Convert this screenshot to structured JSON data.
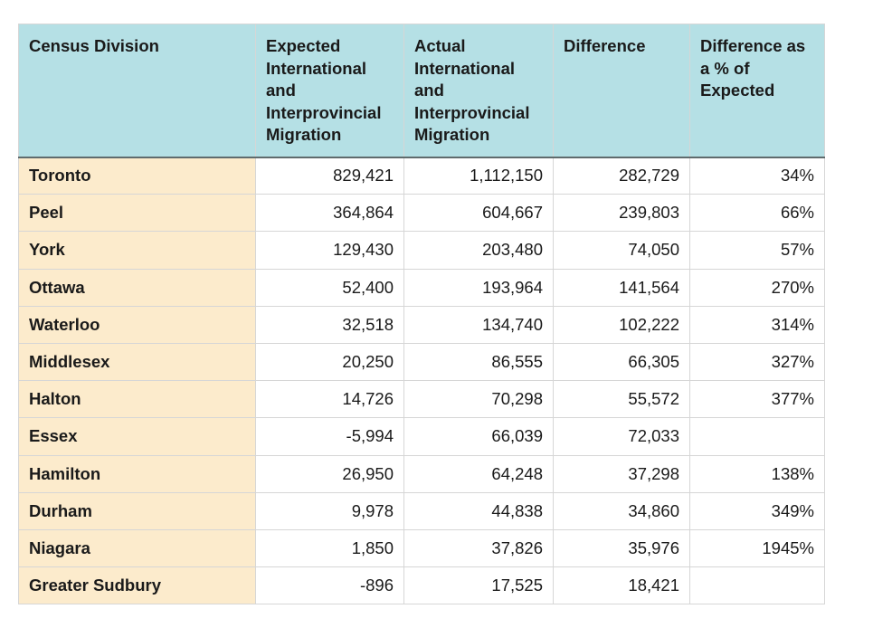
{
  "table": {
    "headers": [
      "Census Division",
      "Expected International and Interprovincial Migration",
      "Actual International and Interprovincial Migration",
      "Difference",
      "Difference as a % of Expected"
    ],
    "rows": [
      [
        "Toronto",
        "829,421",
        "1,112,150",
        "282,729",
        "34%"
      ],
      [
        "Peel",
        "364,864",
        "604,667",
        "239,803",
        "66%"
      ],
      [
        "York",
        "129,430",
        "203,480",
        "74,050",
        "57%"
      ],
      [
        "Ottawa",
        "52,400",
        "193,964",
        "141,564",
        "270%"
      ],
      [
        "Waterloo",
        "32,518",
        "134,740",
        "102,222",
        "314%"
      ],
      [
        "Middlesex",
        "20,250",
        "86,555",
        "66,305",
        "327%"
      ],
      [
        "Halton",
        "14,726",
        "70,298",
        "55,572",
        "377%"
      ],
      [
        "Essex",
        "-5,994",
        "66,039",
        "72,033",
        ""
      ],
      [
        "Hamilton",
        "26,950",
        "64,248",
        "37,298",
        "138%"
      ],
      [
        "Durham",
        "9,978",
        "44,838",
        "34,860",
        "349%"
      ],
      [
        "Niagara",
        "1,850",
        "37,826",
        "35,976",
        "1945%"
      ],
      [
        "Greater Sudbury",
        "-896",
        "17,525",
        "18,421",
        ""
      ]
    ]
  },
  "colors": {
    "header_bg": "#b5e0e5",
    "label_bg": "#fcebcc",
    "border": "#d6d6d6"
  }
}
